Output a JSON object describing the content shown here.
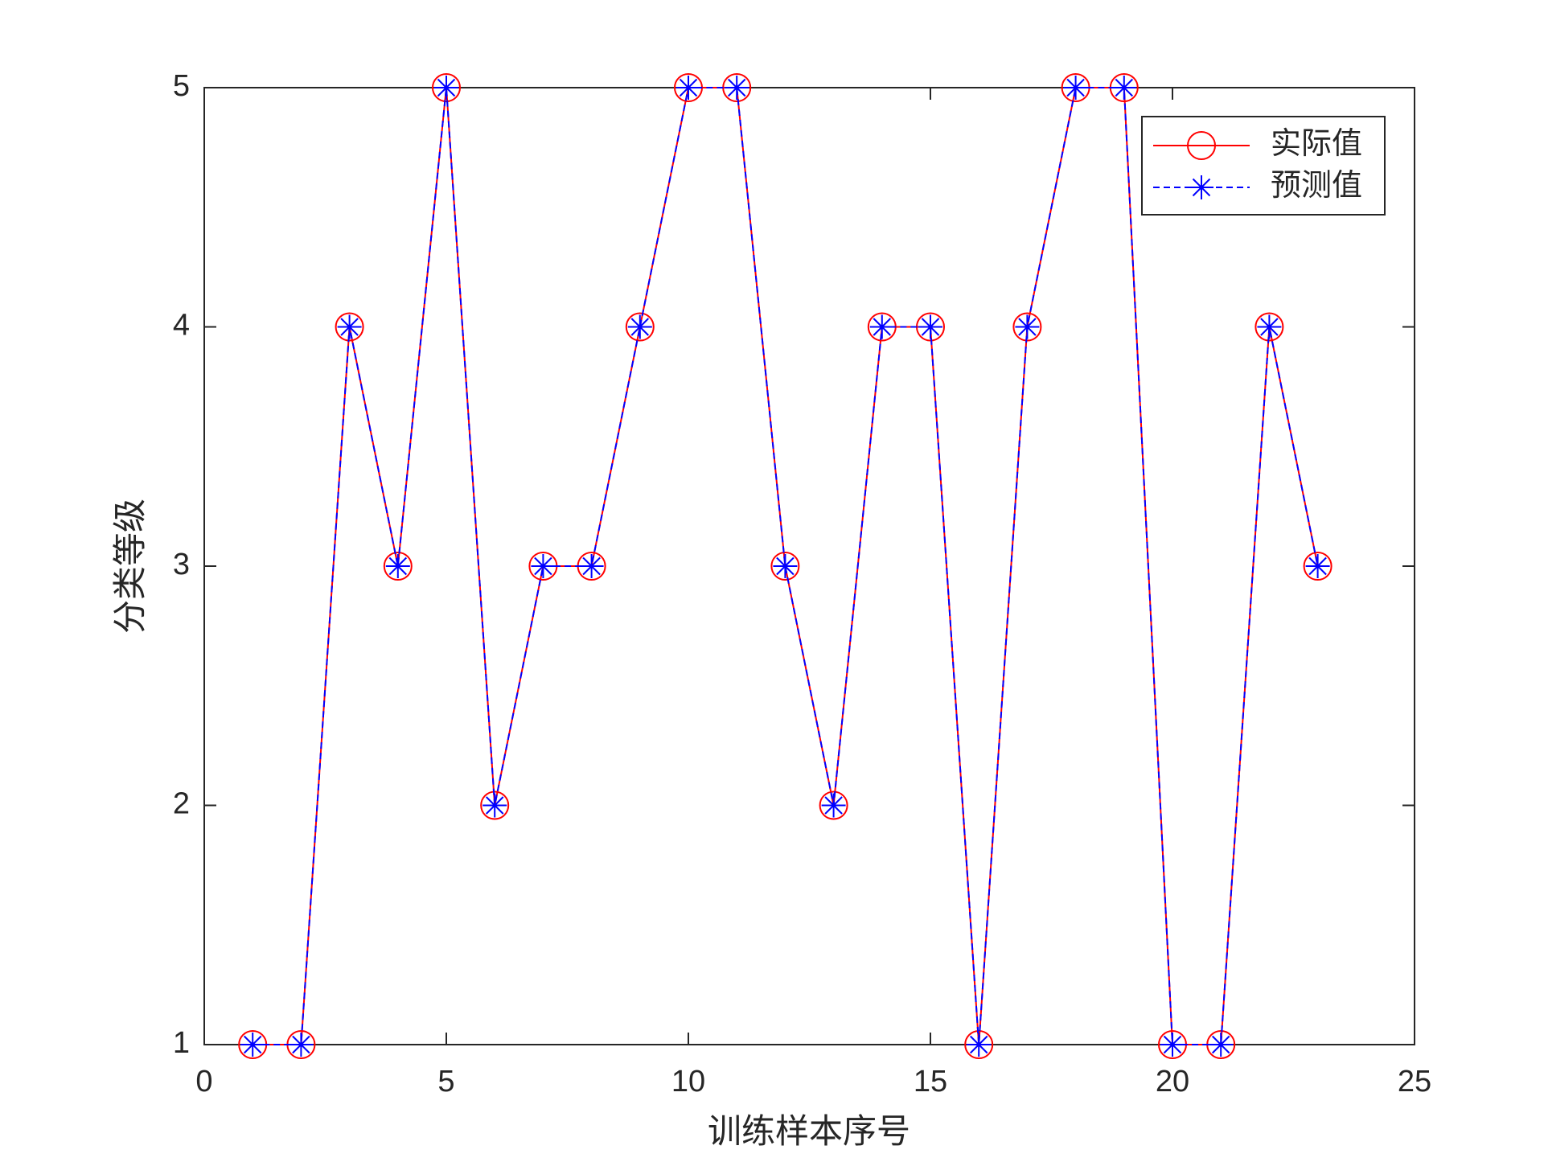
{
  "chart_data": {
    "type": "line",
    "x_label": "训练样本序号",
    "y_label": "分类等级",
    "x": [
      1,
      2,
      3,
      4,
      5,
      6,
      7,
      8,
      9,
      10,
      11,
      12,
      13,
      14,
      15,
      16,
      17,
      18,
      19,
      20,
      21,
      22,
      23
    ],
    "series": [
      {
        "name": "实际值",
        "color": "#ff0000",
        "line_style": "solid",
        "marker": "circle",
        "values": [
          1,
          1,
          4,
          3,
          5,
          2,
          3,
          3,
          4,
          5,
          5,
          3,
          2,
          4,
          4,
          1,
          4,
          5,
          5,
          1,
          1,
          4,
          3
        ]
      },
      {
        "name": "预测值",
        "color": "#0000ff",
        "line_style": "dashed",
        "marker": "asterisk",
        "values": [
          1,
          1,
          4,
          3,
          5,
          2,
          3,
          3,
          4,
          5,
          5,
          3,
          2,
          4,
          4,
          1,
          4,
          5,
          5,
          1,
          1,
          4,
          3
        ]
      }
    ],
    "xlim": [
      0,
      25
    ],
    "xticks": [
      0,
      5,
      10,
      15,
      20,
      25
    ],
    "ylim": [
      1,
      5
    ],
    "yticks": [
      1,
      2,
      3,
      4,
      5
    ],
    "grid": false,
    "legend": "upper right"
  }
}
